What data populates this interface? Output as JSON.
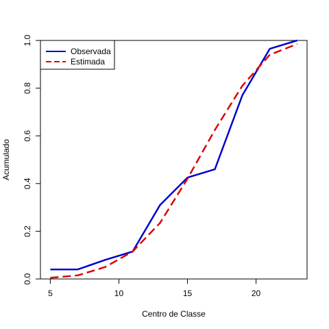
{
  "chart_data": {
    "type": "line",
    "title": "",
    "xlabel": "Centro de Classe",
    "ylabel": "Acumulado",
    "xlim": [
      4.28,
      23.72
    ],
    "ylim": [
      0.0,
      1.0
    ],
    "x_ticks": [
      5,
      10,
      15,
      20
    ],
    "y_ticks": [
      0.0,
      0.2,
      0.4,
      0.6,
      0.8,
      1.0
    ],
    "x_tick_labels": [
      "5",
      "10",
      "15",
      "20"
    ],
    "y_tick_labels": [
      "0.0",
      "0.2",
      "0.4",
      "0.6",
      "0.8",
      "1.0"
    ],
    "grid": false,
    "legend_position": "top-left",
    "x": [
      5,
      7,
      9,
      11,
      13,
      15,
      17,
      19,
      21,
      23
    ],
    "series": [
      {
        "name": "Observada",
        "style": "solid",
        "color": "#0000CD",
        "values": [
          0.04,
          0.04,
          0.08,
          0.115,
          0.31,
          0.425,
          0.46,
          0.77,
          0.965,
          1.0
        ]
      },
      {
        "name": "Estimada",
        "style": "dashed",
        "color": "#DD0000",
        "values": [
          0.005,
          0.015,
          0.05,
          0.115,
          0.235,
          0.42,
          0.625,
          0.81,
          0.94,
          0.985
        ]
      }
    ]
  }
}
